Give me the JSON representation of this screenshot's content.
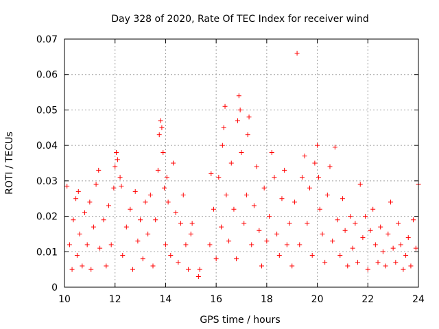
{
  "chart_data": {
    "type": "scatter",
    "title": "Day 328 of 2020, Rate Of TEC Index for receiver wind",
    "xlabel": "GPS time / hours",
    "ylabel": "ROTI / TECUs",
    "xlim": [
      10,
      24
    ],
    "ylim": [
      0,
      0.07
    ],
    "xticks": [
      "10",
      "12",
      "14",
      "16",
      "18",
      "20",
      "22",
      "24"
    ],
    "yticks": [
      "0",
      "0.01",
      "0.02",
      "0.03",
      "0.04",
      "0.05",
      "0.06",
      "0.07"
    ],
    "grid": true,
    "marker": "+",
    "marker_color": "#ff0000",
    "series": [
      {
        "values": [
          [
            10.1,
            0.0285
          ],
          [
            10.2,
            0.012
          ],
          [
            10.3,
            0.005
          ],
          [
            10.35,
            0.019
          ],
          [
            10.45,
            0.025
          ],
          [
            10.5,
            0.009
          ],
          [
            10.55,
            0.027
          ],
          [
            10.6,
            0.015
          ],
          [
            10.7,
            0.006
          ],
          [
            10.8,
            0.021
          ],
          [
            10.9,
            0.012
          ],
          [
            11.0,
            0.024
          ],
          [
            11.05,
            0.005
          ],
          [
            11.15,
            0.017
          ],
          [
            11.25,
            0.029
          ],
          [
            11.35,
            0.033
          ],
          [
            11.4,
            0.011
          ],
          [
            11.55,
            0.019
          ],
          [
            11.65,
            0.006
          ],
          [
            11.75,
            0.023
          ],
          [
            11.85,
            0.012
          ],
          [
            11.95,
            0.028
          ],
          [
            12.0,
            0.034
          ],
          [
            12.05,
            0.038
          ],
          [
            12.1,
            0.036
          ],
          [
            12.2,
            0.031
          ],
          [
            12.25,
            0.0285
          ],
          [
            12.3,
            0.009
          ],
          [
            12.45,
            0.017
          ],
          [
            12.6,
            0.022
          ],
          [
            12.7,
            0.005
          ],
          [
            12.8,
            0.027
          ],
          [
            12.9,
            0.013
          ],
          [
            13.0,
            0.019
          ],
          [
            13.1,
            0.008
          ],
          [
            13.2,
            0.024
          ],
          [
            13.3,
            0.015
          ],
          [
            13.4,
            0.026
          ],
          [
            13.5,
            0.006
          ],
          [
            13.6,
            0.019
          ],
          [
            13.7,
            0.033
          ],
          [
            13.75,
            0.043
          ],
          [
            13.8,
            0.047
          ],
          [
            13.85,
            0.045
          ],
          [
            13.9,
            0.038
          ],
          [
            13.95,
            0.028
          ],
          [
            14.0,
            0.012
          ],
          [
            14.05,
            0.031
          ],
          [
            14.1,
            0.024
          ],
          [
            14.2,
            0.009
          ],
          [
            14.3,
            0.035
          ],
          [
            14.4,
            0.021
          ],
          [
            14.5,
            0.007
          ],
          [
            14.6,
            0.018
          ],
          [
            14.7,
            0.026
          ],
          [
            14.8,
            0.012
          ],
          [
            14.9,
            0.005
          ],
          [
            15.0,
            0.015
          ],
          [
            15.05,
            0.018
          ],
          [
            15.3,
            0.003
          ],
          [
            15.35,
            0.005
          ],
          [
            15.75,
            0.012
          ],
          [
            15.8,
            0.032
          ],
          [
            15.9,
            0.022
          ],
          [
            16.0,
            0.008
          ],
          [
            16.1,
            0.031
          ],
          [
            16.2,
            0.017
          ],
          [
            16.25,
            0.04
          ],
          [
            16.3,
            0.045
          ],
          [
            16.35,
            0.051
          ],
          [
            16.4,
            0.026
          ],
          [
            16.5,
            0.013
          ],
          [
            16.6,
            0.035
          ],
          [
            16.7,
            0.022
          ],
          [
            16.8,
            0.008
          ],
          [
            16.85,
            0.047
          ],
          [
            16.9,
            0.054
          ],
          [
            16.95,
            0.05
          ],
          [
            17.0,
            0.038
          ],
          [
            17.1,
            0.018
          ],
          [
            17.2,
            0.026
          ],
          [
            17.25,
            0.043
          ],
          [
            17.3,
            0.048
          ],
          [
            17.4,
            0.012
          ],
          [
            17.5,
            0.023
          ],
          [
            17.6,
            0.034
          ],
          [
            17.7,
            0.016
          ],
          [
            17.8,
            0.006
          ],
          [
            17.9,
            0.028
          ],
          [
            18.0,
            0.013
          ],
          [
            18.1,
            0.02
          ],
          [
            18.2,
            0.038
          ],
          [
            18.3,
            0.031
          ],
          [
            18.4,
            0.015
          ],
          [
            18.5,
            0.009
          ],
          [
            18.6,
            0.025
          ],
          [
            18.7,
            0.033
          ],
          [
            18.8,
            0.012
          ],
          [
            18.9,
            0.018
          ],
          [
            19.0,
            0.006
          ],
          [
            19.1,
            0.024
          ],
          [
            19.2,
            0.066
          ],
          [
            19.3,
            0.012
          ],
          [
            19.4,
            0.031
          ],
          [
            19.5,
            0.037
          ],
          [
            19.6,
            0.018
          ],
          [
            19.7,
            0.028
          ],
          [
            19.8,
            0.009
          ],
          [
            19.9,
            0.035
          ],
          [
            20.0,
            0.04
          ],
          [
            20.05,
            0.031
          ],
          [
            20.1,
            0.022
          ],
          [
            20.2,
            0.015
          ],
          [
            20.3,
            0.007
          ],
          [
            20.4,
            0.026
          ],
          [
            20.5,
            0.034
          ],
          [
            20.6,
            0.013
          ],
          [
            20.7,
            0.0395
          ],
          [
            20.8,
            0.019
          ],
          [
            20.9,
            0.009
          ],
          [
            21.0,
            0.025
          ],
          [
            21.1,
            0.016
          ],
          [
            21.2,
            0.006
          ],
          [
            21.3,
            0.02
          ],
          [
            21.4,
            0.011
          ],
          [
            21.5,
            0.018
          ],
          [
            21.6,
            0.007
          ],
          [
            21.7,
            0.029
          ],
          [
            21.8,
            0.014
          ],
          [
            21.9,
            0.02
          ],
          [
            22.0,
            0.005
          ],
          [
            22.1,
            0.016
          ],
          [
            22.2,
            0.022
          ],
          [
            22.3,
            0.012
          ],
          [
            22.4,
            0.007
          ],
          [
            22.5,
            0.017
          ],
          [
            22.6,
            0.01
          ],
          [
            22.7,
            0.006
          ],
          [
            22.8,
            0.015
          ],
          [
            22.9,
            0.024
          ],
          [
            23.0,
            0.011
          ],
          [
            23.1,
            0.007
          ],
          [
            23.2,
            0.018
          ],
          [
            23.3,
            0.012
          ],
          [
            23.4,
            0.005
          ],
          [
            23.5,
            0.009
          ],
          [
            23.6,
            0.014
          ],
          [
            23.7,
            0.006
          ],
          [
            23.8,
            0.019
          ],
          [
            23.9,
            0.011
          ],
          [
            24.0,
            0.029
          ]
        ]
      }
    ]
  }
}
